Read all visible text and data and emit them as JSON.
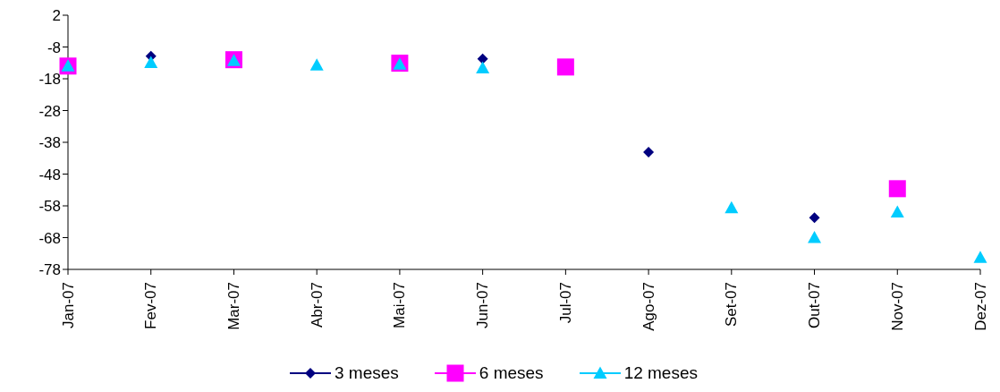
{
  "chart_data": {
    "type": "scatter",
    "categories": [
      "Jan-07",
      "Fev-07",
      "Mar-07",
      "Abr-07",
      "Mai-07",
      "Jun-07",
      "Jul-07",
      "Ago-07",
      "Set-07",
      "Out-07",
      "Nov-07",
      "Dez-07"
    ],
    "series": [
      {
        "name": "3 meses",
        "color": "#000080",
        "marker": "diamond",
        "values": [
          null,
          -10.9,
          null,
          null,
          null,
          -11.7,
          null,
          -41.1,
          null,
          -61.7,
          null,
          null
        ]
      },
      {
        "name": "6 meses",
        "color": "#ff00ff",
        "marker": "square",
        "values": [
          -14,
          null,
          -12,
          null,
          -13.1,
          null,
          -14.3,
          null,
          null,
          null,
          -52.6,
          null
        ]
      },
      {
        "name": "12 meses",
        "color": "#00ccff",
        "marker": "triangle",
        "values": [
          -14,
          -12.9,
          -12.3,
          -13.7,
          -13.4,
          -14.6,
          null,
          null,
          -58.6,
          -68,
          -60,
          -74.3
        ]
      }
    ],
    "ylim": [
      -78,
      2
    ],
    "yticks": [
      2,
      -8,
      -18,
      -28,
      -38,
      -48,
      -58,
      -68,
      -78
    ],
    "legend": "bottom"
  }
}
